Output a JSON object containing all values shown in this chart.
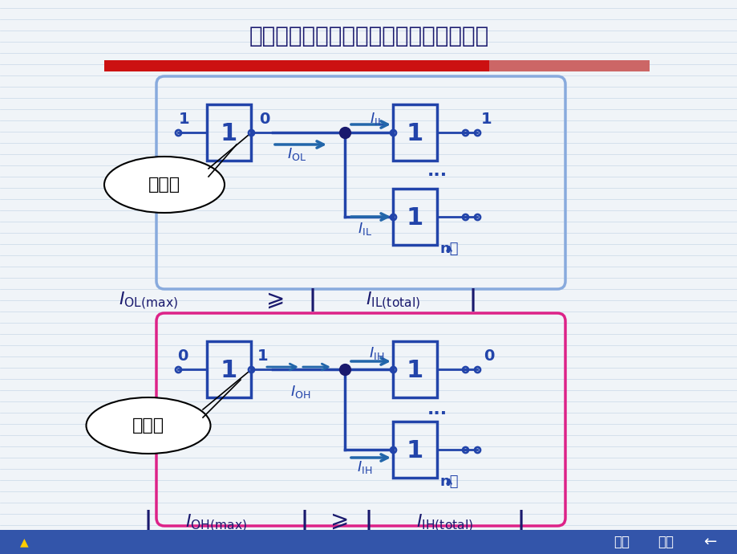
{
  "title": "对负载器件提供足够大的拉电流和灌电流",
  "bg_color": "#f0f4f8",
  "line_color": "#c8d8e8",
  "title_color": "#1a1a6e",
  "box1_border": "#4444cc",
  "box2_border": "#cc2266",
  "gate_color": "#2244aa",
  "arrow_color": "#2266aa",
  "node_color": "#1a1a6e",
  "label_color": "#2244aa",
  "formula_color": "#1a1a6e",
  "red_bar_color": "#cc1111",
  "nav_color": "#3355aa"
}
